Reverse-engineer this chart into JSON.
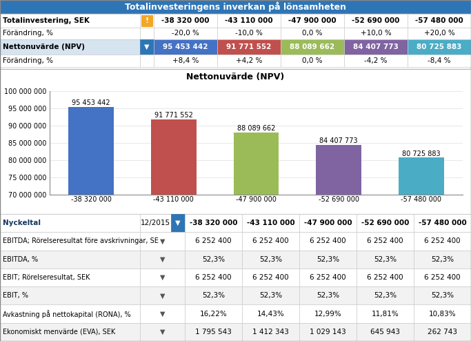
{
  "title": "Totalinvesteringens inverkan på lönsamheten",
  "title_bg": "#2E75B6",
  "top_table": {
    "row1_label": "Totalinvestering, SEK",
    "row2_label": "Förändring, %",
    "row3_label": "Nettonuvärde (NPV)",
    "row4_label": "Förändring, %",
    "columns": [
      "-38 320 000",
      "-43 110 000",
      "-47 900 000",
      "-52 690 000",
      "-57 480 000"
    ],
    "row2_vals": [
      "-20,0 %",
      "-10,0 %",
      "0,0 %",
      "+10,0 %",
      "+20,0 %"
    ],
    "row3_vals": [
      "95 453 442",
      "91 771 552",
      "88 089 662",
      "84 407 773",
      "80 725 883"
    ],
    "row4_vals": [
      "+8,4 %",
      "+4,2 %",
      "0,0 %",
      "-4,2 %",
      "-8,4 %"
    ],
    "row3_colors": [
      "#4472C4",
      "#C0504D",
      "#9BBB59",
      "#8064A2",
      "#4BACC6"
    ]
  },
  "chart_title": "Nettonuvärde (NPV)",
  "bar_values": [
    95453442,
    91771552,
    88089662,
    84407773,
    80725883
  ],
  "bar_labels_top": [
    "95 453 442",
    "91 771 552",
    "88 089 662",
    "84 407 773",
    "80 725 883"
  ],
  "bar_labels_bot": [
    "-38 320 000",
    "-43 110 000",
    "-47 900 000",
    "-52 690 000",
    "-57 480 000"
  ],
  "bar_colors": [
    "#4472C4",
    "#C0504D",
    "#9BBB59",
    "#8064A2",
    "#4BACC6"
  ],
  "ylim": [
    70000000,
    100000000
  ],
  "yticks": [
    70000000,
    75000000,
    80000000,
    85000000,
    90000000,
    95000000,
    100000000
  ],
  "bottom_table": {
    "header_label": "Nyckeltal",
    "header_period": "12/2015",
    "header_cols": [
      "-38 320 000",
      "-43 110 000",
      "-47 900 000",
      "-52 690 000",
      "-57 480 000"
    ],
    "rows": [
      {
        "label": "EBITDA; Rörelseresultat före avskrivningar, SE",
        "vals": [
          "6 252 400",
          "6 252 400",
          "6 252 400",
          "6 252 400",
          "6 252 400"
        ]
      },
      {
        "label": "EBITDA, %",
        "vals": [
          "52,3%",
          "52,3%",
          "52,3%",
          "52,3%",
          "52,3%"
        ]
      },
      {
        "label": "EBIT; Rörelseresultat, SEK",
        "vals": [
          "6 252 400",
          "6 252 400",
          "6 252 400",
          "6 252 400",
          "6 252 400"
        ]
      },
      {
        "label": "EBIT, %",
        "vals": [
          "52,3%",
          "52,3%",
          "52,3%",
          "52,3%",
          "52,3%"
        ]
      },
      {
        "label": "Avkastning på nettokapital (RONA), %",
        "vals": [
          "16,22%",
          "14,43%",
          "12,99%",
          "11,81%",
          "10,83%"
        ]
      },
      {
        "label": "Ekonomiskt menvärde (EVA), SEK",
        "vals": [
          "1 795 543",
          "1 412 343",
          "1 029 143",
          "645 943",
          "262 743"
        ]
      }
    ]
  }
}
